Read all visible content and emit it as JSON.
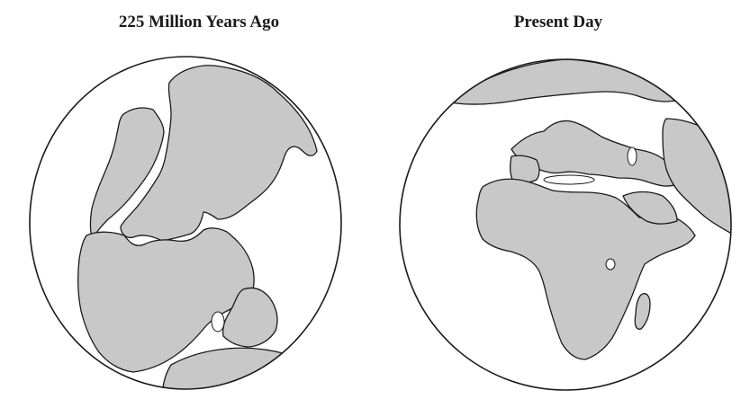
{
  "diagram": {
    "panels": [
      {
        "title": "225 Million Years Ago",
        "landmass": "pangaea"
      },
      {
        "title": "Present Day",
        "landmass": "africa-europe"
      }
    ],
    "colors": {
      "land": "#c8c8c8",
      "outline": "#1a1a1a",
      "ocean": "#ffffff"
    }
  }
}
